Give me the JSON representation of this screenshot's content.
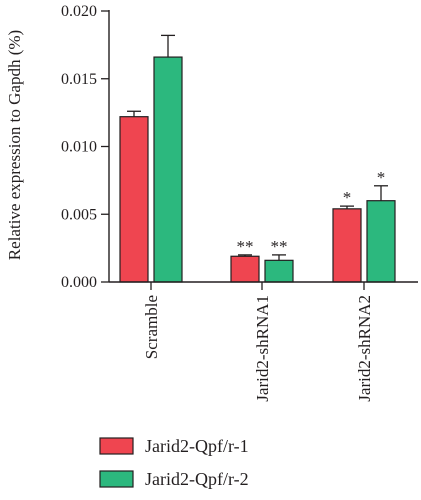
{
  "chart_data": {
    "type": "bar",
    "categories": [
      "Scramble",
      "Jarid2-shRNA1",
      "Jarid2-shRNA2"
    ],
    "series": [
      {
        "name": "Jarid2-Qpf/r-1",
        "color": "#ef4550",
        "values": [
          0.0122,
          0.0019,
          0.0054
        ],
        "errors": [
          0.0004,
          0.0001,
          0.0002
        ],
        "significance": [
          "",
          "**",
          "*"
        ]
      },
      {
        "name": "Jarid2-Qpf/r-2",
        "color": "#2cb87e",
        "values": [
          0.0166,
          0.0016,
          0.006
        ],
        "errors": [
          0.0016,
          0.0004,
          0.0011
        ],
        "significance": [
          "",
          "**",
          "*"
        ]
      }
    ],
    "yticks": [
      "0.000",
      "0.005",
      "0.010",
      "0.015",
      "0.020"
    ],
    "ylabel": "Relative expression to Gapdh (%)",
    "ylim": [
      0,
      0.02
    ],
    "legend": "bottom-left",
    "grid": false
  }
}
